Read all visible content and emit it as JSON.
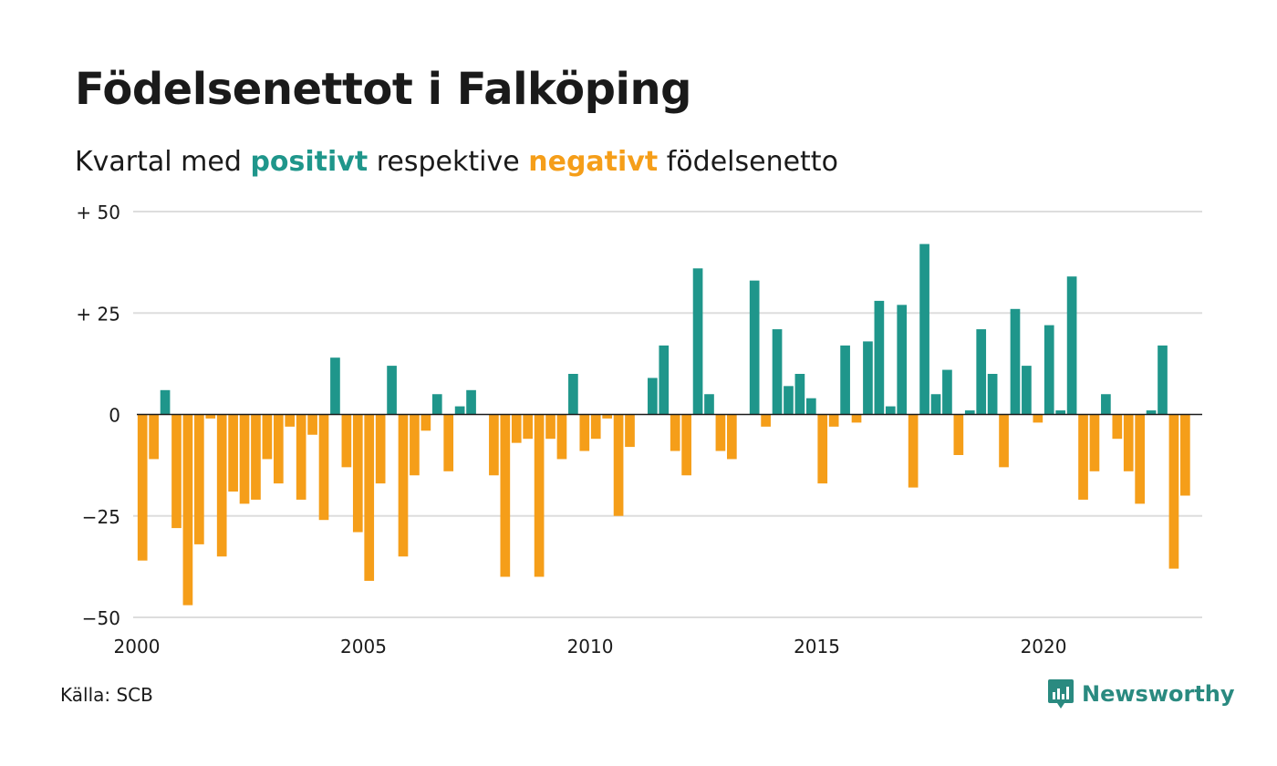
{
  "title": "Födelsenettot i Falköping",
  "subtitle": {
    "prefix": "Kvartal med",
    "positive": "positivt",
    "middle": "respektive",
    "negative": "negativt",
    "suffix": "födelsenetto"
  },
  "source": "Källa: SCB",
  "brand": "Newsworthy",
  "colors": {
    "positive": "#1f968b",
    "negative": "#f59e19",
    "grid": "#dddddd",
    "axis": "#1a1a1a",
    "brand": "#2a8a80"
  },
  "chart_data": {
    "type": "bar",
    "x_start": 2000,
    "x_step": 0.25,
    "xlim": [
      2000,
      2023.5
    ],
    "ylim": [
      -50,
      50
    ],
    "y_ticks": [
      50,
      25,
      0,
      -25,
      -50
    ],
    "y_tick_labels": [
      "+ 50",
      "+ 25",
      "0",
      "−25",
      "−50"
    ],
    "x_ticks": [
      2000,
      2005,
      2010,
      2015,
      2020
    ],
    "x_tick_labels": [
      "2000",
      "2005",
      "2010",
      "2015",
      "2020"
    ],
    "values": [
      -36,
      -11,
      6,
      -28,
      -47,
      -32,
      -1,
      -35,
      -19,
      -22,
      -21,
      -11,
      -17,
      -3,
      -21,
      -5,
      -26,
      14,
      -13,
      -29,
      -41,
      -17,
      12,
      -35,
      -15,
      -4,
      5,
      -14,
      2,
      6,
      0,
      -15,
      -40,
      -7,
      -6,
      -40,
      -6,
      -11,
      10,
      -9,
      -6,
      -1,
      -25,
      -8,
      0,
      9,
      17,
      -9,
      -15,
      36,
      5,
      -9,
      -11,
      0,
      33,
      -3,
      21,
      7,
      10,
      4,
      -17,
      -3,
      17,
      -2,
      18,
      28,
      2,
      27,
      -18,
      42,
      5,
      11,
      -10,
      1,
      21,
      10,
      -13,
      26,
      12,
      -2,
      22,
      1,
      34,
      -21,
      -14,
      5,
      -6,
      -14,
      -22,
      1,
      17,
      -38,
      -20
    ]
  }
}
